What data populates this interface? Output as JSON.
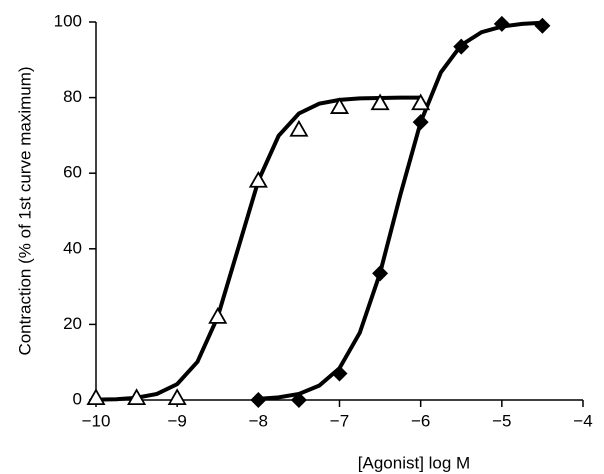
{
  "chart_data": {
    "type": "scatter",
    "xlabel": "[Agonist] log M",
    "ylabel": "Contraction (% of 1st curve maximum)",
    "xlim": [
      -10,
      -4
    ],
    "xticks": [
      {
        "value": -10,
        "label": "−10"
      },
      {
        "value": -9,
        "label": "−9"
      },
      {
        "value": -8,
        "label": "−8"
      },
      {
        "value": -7,
        "label": "−7"
      },
      {
        "value": -6,
        "label": "−6"
      },
      {
        "value": -5,
        "label": "−5"
      },
      {
        "value": -4,
        "label": "−4"
      }
    ],
    "ylim": [
      0,
      100
    ],
    "yticks": [
      0,
      20,
      40,
      60,
      80,
      100
    ],
    "grid": false,
    "series": [
      {
        "marker": "triangle-open",
        "color": "#000000",
        "x": [
          -10,
          -9.5,
          -9,
          -8.5,
          -8,
          -7.5,
          -7,
          -6.5,
          -6
        ],
        "values": [
          0.5,
          0.5,
          0.5,
          22,
          58,
          71.5,
          77.5,
          78.5,
          78.5
        ]
      },
      {
        "marker": "diamond",
        "color": "#000000",
        "x": [
          -8,
          -7.5,
          -7,
          -6.5,
          -6,
          -5.5,
          -5,
          -4.5
        ],
        "values": [
          0,
          0,
          7,
          33.5,
          73.5,
          93.5,
          99.5,
          99
        ]
      },
      {
        "marker": "line",
        "color": "#000000",
        "x": [
          -10,
          -9.75,
          -9.5,
          -9.25,
          -9,
          -8.75,
          -8.5,
          -8.25,
          -8,
          -7.75,
          -7.5,
          -7.25,
          -7,
          -6.75,
          -6.5,
          -6.25,
          -6
        ],
        "values": [
          0.1,
          0.2,
          0.6,
          1.6,
          4.2,
          10.1,
          22,
          40,
          58,
          69.9,
          75.8,
          78.4,
          79.4,
          79.8,
          79.9,
          80,
          80
        ]
      },
      {
        "marker": "line",
        "color": "#000000",
        "x": [
          -8,
          -7.75,
          -7.5,
          -7.25,
          -7,
          -6.75,
          -6.5,
          -6.25,
          -6,
          -5.75,
          -5.5,
          -5.25,
          -5,
          -4.75,
          -4.5
        ],
        "values": [
          0.3,
          0.7,
          1.6,
          3.8,
          8.4,
          17.8,
          33.6,
          54.3,
          73.5,
          86.7,
          93.9,
          97.3,
          98.8,
          99.5,
          99.8
        ]
      }
    ]
  }
}
